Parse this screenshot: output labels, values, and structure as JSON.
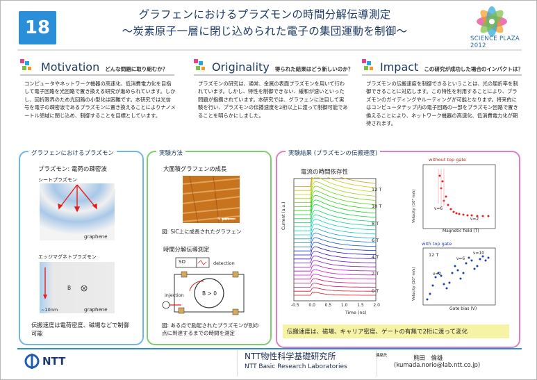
{
  "header": {
    "number": "18",
    "title_line1": "グラフェンにおけるプラズモンの時間分解伝導測定",
    "title_line2": "〜炭素原子一層に閉じ込められた電子の集団運動を制御〜",
    "logo_text": "SCIENCE PLAZA 2012"
  },
  "sections": {
    "motivation": {
      "title": "Motivation",
      "subtitle": "どんな問題に取り組むか？",
      "body": "コンピュータやネットワーク機器の高速化、低消費電力化を目指して電子回路を光回路で置き換える研究が進められています。しかし、回折限界のため光回路の小型化は困難です。本研究では光信号を電子の疎密波であるプラズモンに置き換えることによりナノメートル領域に閉じ込め、制御することを目標としています。"
    },
    "originality": {
      "title": "Originality",
      "subtitle": "得られた結果はどう新しいのか？",
      "body": "プラズモンの研究は、通常、金属の表面プラズモンを用いて行われています。しかし、特性を制御できない、緩和が速いといった問題が指摘されています。本研究では、グラフェンに注目して実験を行い、プラズモンの伝播速度を2桁以上に渡って制御可能であることを明らかにしました。"
    },
    "impact": {
      "title": "Impact",
      "subtitle": "この研究が成功した場合のインパクトは？",
      "body": "プラズモンの伝搬速度を制御できるということは、光の屈折率を制御できることに対応します。この特性を利用することにより、プラズモンのガイディングやルーティングが可能となります。将来的にはコンピュータチップ内の電子回路の一部をプラズモン回路で置き換えることにより、ネットワーク機器の高速化、低消費電力化が期待されます。"
    }
  },
  "panels": {
    "graphene": {
      "title": "グラフェンにおけるプラズモン",
      "heading": "プラズモン: 電荷の疎密波",
      "sheet_label": "シートプラズモン",
      "graphene_label": "graphene",
      "edge_label": "エッジマグネトプラズモン",
      "b_label": "B",
      "scale_label": "~10nm",
      "graphene_label2": "graphene",
      "caption": "伝搬速度は電荷密度、磁場などで制御可能"
    },
    "method": {
      "title": "実験方法",
      "growth_heading": "大面積グラフェンの成長",
      "scale_bar": "5 μm",
      "growth_caption": "図: SiC上に成長されたグラフェン",
      "measure_heading": "時間分解伝導測定",
      "so_label": "SO",
      "detection_label": "detection",
      "injection_label": "injection",
      "b_label": "B > 0",
      "measure_caption": "図: ある点で励起されたプラズモンが別の点に到達するまでの時間を測定"
    },
    "results": {
      "title": "実験結果 (プラズモンの伝搬速度)",
      "current_heading": "電流の時間依存性",
      "y_axis": "Current (a.u.)",
      "x_axis": "Time (ns)",
      "field_labels": [
        "12 T",
        "10 T",
        "8 T",
        "6 T",
        "4 T",
        "2 T",
        "0 T"
      ],
      "x_ticks": [
        "-0.5",
        "0.0",
        "0.5",
        "1.0",
        "1.5",
        "2.0"
      ],
      "top_chart_title": "without top gate",
      "top_chart_xlabel": "Magnetic field (T)",
      "top_chart_ylabel": "Velocity (10⁵ m/s)",
      "top_nu6": "ν=6",
      "top_nu2": "ν=2",
      "bottom_chart_title": "with top gate",
      "bottom_chart_xlabel": "Gate bias (V)",
      "bottom_chart_ylabel": "Velocity (10³ m/s)",
      "bottom_12T": "12 T",
      "bottom_nu2": "ν=2",
      "bottom_nu6": "ν=6",
      "bottom_nu10": "ν=10",
      "summary": "伝搬速度は、磁場、キャリア密度、ゲートの有無で2桁に渡って変化"
    }
  },
  "footer": {
    "ntt": "NTT",
    "lab_jp": "NTT物性科学基礎研究所",
    "lab_en": "NTT Basic Research Laboratories",
    "contact_label": "連絡先",
    "contact_name": "熊田　倫雄",
    "contact_email": "(kumada.norio@lab.ntt.co.jp)"
  },
  "colors": {
    "accent_blue": "#2a8fd8",
    "panel_left": "#6fb6e6",
    "panel_mid": "#7ccf6a",
    "panel_right": "#e27bc0"
  }
}
